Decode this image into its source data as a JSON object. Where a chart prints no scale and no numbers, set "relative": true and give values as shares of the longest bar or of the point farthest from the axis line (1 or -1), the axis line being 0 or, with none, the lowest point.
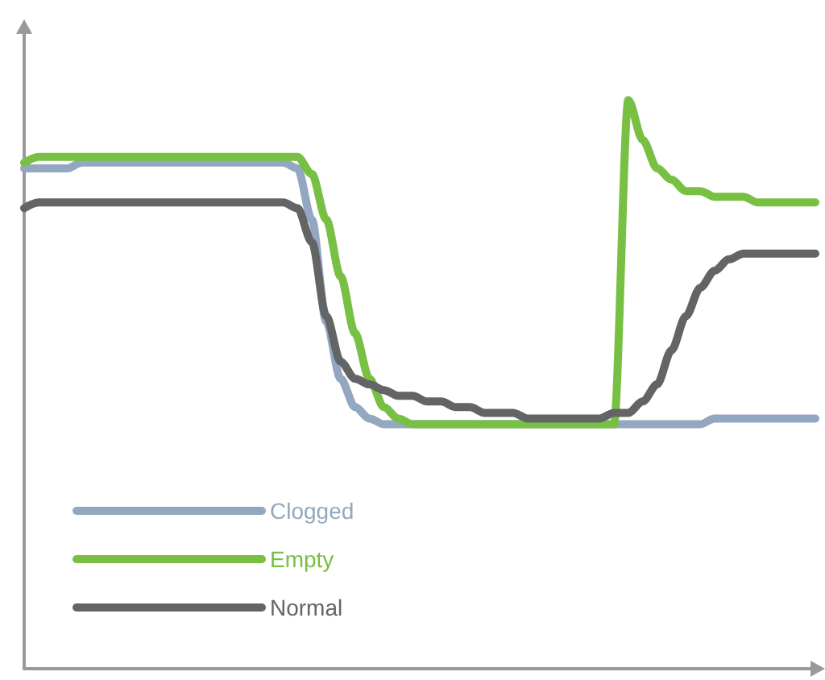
{
  "chart_data": {
    "type": "line",
    "relative": true,
    "categories": [
      null,
      null,
      null,
      null,
      null,
      null,
      null,
      null,
      null,
      null,
      null,
      null,
      null,
      null,
      null,
      null,
      null,
      null,
      null,
      null,
      null,
      null,
      null,
      null,
      null,
      null,
      null,
      null,
      null,
      null,
      null,
      null,
      null,
      null,
      null,
      null,
      null,
      null,
      null,
      null,
      null,
      null,
      null,
      null,
      null,
      null,
      null,
      null,
      null,
      null,
      null,
      null,
      null,
      null,
      null,
      null
    ],
    "series": [
      {
        "name": "Clogged",
        "color": "#93a8c0",
        "values": [
          0.88,
          0.88,
          0.88,
          0.88,
          0.89,
          0.89,
          0.89,
          0.89,
          0.89,
          0.89,
          0.89,
          0.89,
          0.89,
          0.89,
          0.89,
          0.89,
          0.89,
          0.89,
          0.89,
          0.88,
          0.79,
          0.61,
          0.51,
          0.46,
          0.44,
          0.43,
          0.43,
          0.43,
          0.43,
          0.43,
          0.43,
          0.43,
          0.43,
          0.43,
          0.43,
          0.43,
          0.43,
          0.43,
          0.43,
          0.43,
          0.43,
          0.43,
          0.43,
          0.43,
          0.43,
          0.43,
          0.43,
          0.43,
          0.44,
          0.44,
          0.44,
          0.44,
          0.44,
          0.44,
          0.44,
          0.44
        ]
      },
      {
        "name": "Empty",
        "color": "#78c043",
        "values": [
          0.89,
          0.9,
          0.9,
          0.9,
          0.9,
          0.9,
          0.9,
          0.9,
          0.9,
          0.9,
          0.9,
          0.9,
          0.9,
          0.9,
          0.9,
          0.9,
          0.9,
          0.9,
          0.9,
          0.9,
          0.87,
          0.79,
          0.69,
          0.59,
          0.51,
          0.46,
          0.44,
          0.43,
          0.43,
          0.43,
          0.43,
          0.43,
          0.43,
          0.43,
          0.43,
          0.43,
          0.43,
          0.43,
          0.43,
          0.43,
          0.43,
          0.43,
          1.0,
          0.93,
          0.88,
          0.86,
          0.84,
          0.84,
          0.83,
          0.83,
          0.83,
          0.82,
          0.82,
          0.82,
          0.82,
          0.82
        ]
      },
      {
        "name": "Normal",
        "color": "#636466",
        "values": [
          0.81,
          0.82,
          0.82,
          0.82,
          0.82,
          0.82,
          0.82,
          0.82,
          0.82,
          0.82,
          0.82,
          0.82,
          0.82,
          0.82,
          0.82,
          0.82,
          0.82,
          0.82,
          0.82,
          0.81,
          0.75,
          0.62,
          0.54,
          0.51,
          0.5,
          0.49,
          0.48,
          0.48,
          0.47,
          0.47,
          0.46,
          0.46,
          0.45,
          0.45,
          0.45,
          0.44,
          0.44,
          0.44,
          0.44,
          0.44,
          0.44,
          0.45,
          0.45,
          0.47,
          0.5,
          0.56,
          0.62,
          0.67,
          0.7,
          0.72,
          0.73,
          0.73,
          0.73,
          0.73,
          0.73,
          0.73
        ]
      }
    ],
    "legend": "bottom left",
    "grid": false,
    "line_style": "solid"
  }
}
